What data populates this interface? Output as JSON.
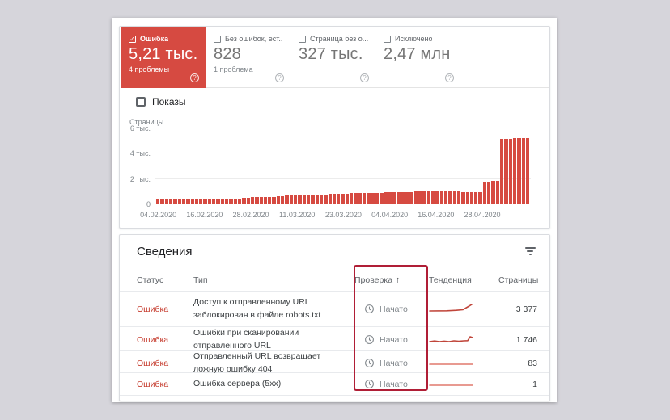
{
  "summary_cards": [
    {
      "key": "error",
      "label": "Ошибка",
      "value": "5,21 тыс.",
      "sub": "4 проблемы",
      "selected": true,
      "checked": true
    },
    {
      "key": "valid-with-warnings",
      "label": "Без ошибок, ест...",
      "value": "828",
      "sub": "1 проблема",
      "selected": false,
      "checked": false
    },
    {
      "key": "valid",
      "label": "Страница без о...",
      "value": "327 тыс.",
      "sub": "",
      "selected": false,
      "checked": false
    },
    {
      "key": "excluded",
      "label": "Исключено",
      "value": "2,47 млн",
      "sub": "",
      "selected": false,
      "checked": false
    }
  ],
  "impressions_toggle": {
    "label": "Показы",
    "checked": false
  },
  "chart_data": {
    "type": "bar",
    "title": "",
    "ylabel": "Страницы",
    "ylim": [
      0,
      6000
    ],
    "grid": true,
    "bar_color": "#d64a41",
    "yticks": [
      {
        "label": "0",
        "value": 0
      },
      {
        "label": "2 тыс.",
        "value": 2000
      },
      {
        "label": "4 тыс.",
        "value": 4000
      },
      {
        "label": "6 тыс.",
        "value": 6000
      }
    ],
    "x_ticks": [
      {
        "label": "04.02.2020",
        "pos_pct": 1.0
      },
      {
        "label": "16.02.2020",
        "pos_pct": 13.3
      },
      {
        "label": "28.02.2020",
        "pos_pct": 25.6
      },
      {
        "label": "11.03.2020",
        "pos_pct": 37.9
      },
      {
        "label": "23.03.2020",
        "pos_pct": 50.2
      },
      {
        "label": "04.04.2020",
        "pos_pct": 62.5
      },
      {
        "label": "16.04.2020",
        "pos_pct": 74.8
      },
      {
        "label": "28.04.2020",
        "pos_pct": 87.1
      }
    ],
    "series": [
      {
        "name": "Ошибка",
        "values": [
          380,
          390,
          385,
          395,
          400,
          395,
          405,
          400,
          410,
          415,
          420,
          430,
          425,
          435,
          445,
          440,
          450,
          455,
          460,
          470,
          520,
          530,
          545,
          555,
          565,
          575,
          585,
          595,
          640,
          660,
          680,
          700,
          715,
          725,
          735,
          745,
          755,
          765,
          775,
          785,
          820,
          830,
          840,
          850,
          858,
          866,
          874,
          882,
          890,
          898,
          906,
          914,
          922,
          930,
          938,
          945,
          955,
          965,
          975,
          985,
          995,
          1005,
          1015,
          1025,
          1035,
          1045,
          1055,
          1040,
          1025,
          1010,
          1000,
          990,
          980,
          970,
          960,
          950,
          1760,
          1800,
          1840,
          1880,
          5150,
          5180,
          5200,
          5210,
          5220,
          5230,
          5240
        ]
      }
    ]
  },
  "details": {
    "title": "Сведения",
    "columns": [
      {
        "key": "status",
        "label": "Статус"
      },
      {
        "key": "type",
        "label": "Тип"
      },
      {
        "key": "validation",
        "label": "Проверка",
        "sorted": true,
        "sort_arrow": "↑"
      },
      {
        "key": "trend",
        "label": "Тенденция"
      },
      {
        "key": "pages",
        "label": "Страницы",
        "align": "right"
      }
    ],
    "rows": [
      {
        "status": "Ошибка",
        "type": "Доступ к отправленному URL заблокирован в файле robots.txt",
        "validation": "Начато",
        "trend": "rise-end",
        "trend_color": "#c0453a",
        "pages": "3 377"
      },
      {
        "status": "Ошибка",
        "type": "Ошибки при сканировании отправленного URL",
        "validation": "Начато",
        "trend": "bumpy-rise-end",
        "trend_color": "#c0453a",
        "pages": "1 746"
      },
      {
        "status": "Ошибка",
        "type": "Отправленный URL возвращает ложную ошибку 404",
        "validation": "Начато",
        "trend": "flat",
        "trend_color": "#e0786d",
        "pages": "83"
      },
      {
        "status": "Ошибка",
        "type": "Ошибка сервера (5xx)",
        "validation": "Начато",
        "trend": "flat",
        "trend_color": "#e0786d",
        "pages": "1"
      }
    ],
    "trend_shapes": {
      "rise-end": "1,11 22,10.8 34,10.2 42,9.5 48,6 53,3",
      "bumpy-rise-end": "1,11 7,10.2 13,11 19,10.4 25,11 31,10 37,10.6 43,10 48,9.8 51,5 54,6",
      "flat": "1,10 54,10"
    }
  },
  "annotation": {
    "highlighted_column": "Проверка",
    "color": "#b01e36"
  },
  "colors": {
    "selected_card_red": "#d64a41",
    "bar_red": "#d64a41",
    "status_text_red": "#c5392b",
    "annotation_red": "#b01e36",
    "background": "#d6d5db"
  }
}
